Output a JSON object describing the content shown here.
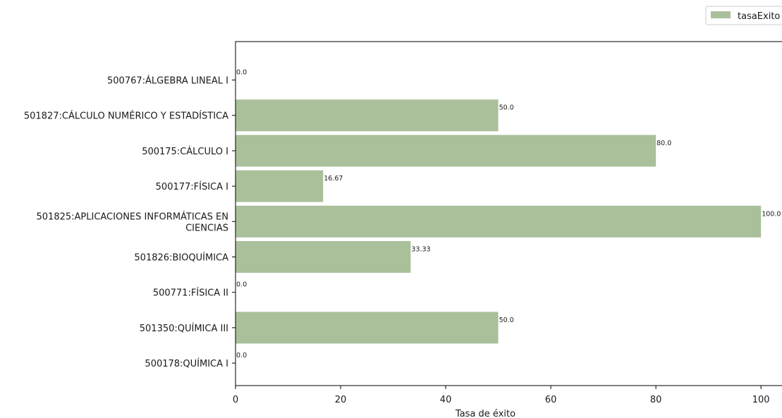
{
  "chart_data": {
    "type": "bar",
    "orientation": "horizontal",
    "categories": [
      "500767:ÁLGEBRA LINEAL I",
      "501827:CÁLCULO NUMÉRICO Y ESTADÍSTICA",
      "500175:CÁLCULO I",
      "500177:FÍSICA I",
      "501825:APLICACIONES INFORMÁTICAS EN CIENCIAS",
      "501826:BIOQUÍMICA",
      "500771:FÍSICA II",
      "501350:QUÍMICA III",
      "500178:QUÍMICA I"
    ],
    "category_lines": [
      [
        "500767:ÁLGEBRA LINEAL I"
      ],
      [
        "501827:CÁLCULO NUMÉRICO Y ESTADÍSTICA"
      ],
      [
        "500175:CÁLCULO I"
      ],
      [
        "500177:FÍSICA I"
      ],
      [
        "501825:APLICACIONES INFORMÁTICAS EN",
        "CIENCIAS"
      ],
      [
        "501826:BIOQUÍMICA"
      ],
      [
        "500771:FÍSICA II"
      ],
      [
        "501350:QUÍMICA III"
      ],
      [
        "500178:QUÍMICA I"
      ]
    ],
    "series": [
      {
        "name": "tasaExito",
        "values": [
          0.0,
          50.0,
          80.0,
          16.67,
          100.0,
          33.33,
          0.0,
          50.0,
          0.0
        ],
        "value_labels": [
          "0.0",
          "50.0",
          "80.0",
          "16.67",
          "100.0",
          "33.33",
          "0.0",
          "50.0",
          "0.0"
        ]
      }
    ],
    "xlabel": "Tasa de éxito",
    "ylabel": "",
    "xlim": [
      0,
      104
    ],
    "xticks": [
      0,
      20,
      40,
      60,
      80,
      100
    ],
    "grid": false,
    "legend": "top-right",
    "color": "#a9c09b"
  }
}
